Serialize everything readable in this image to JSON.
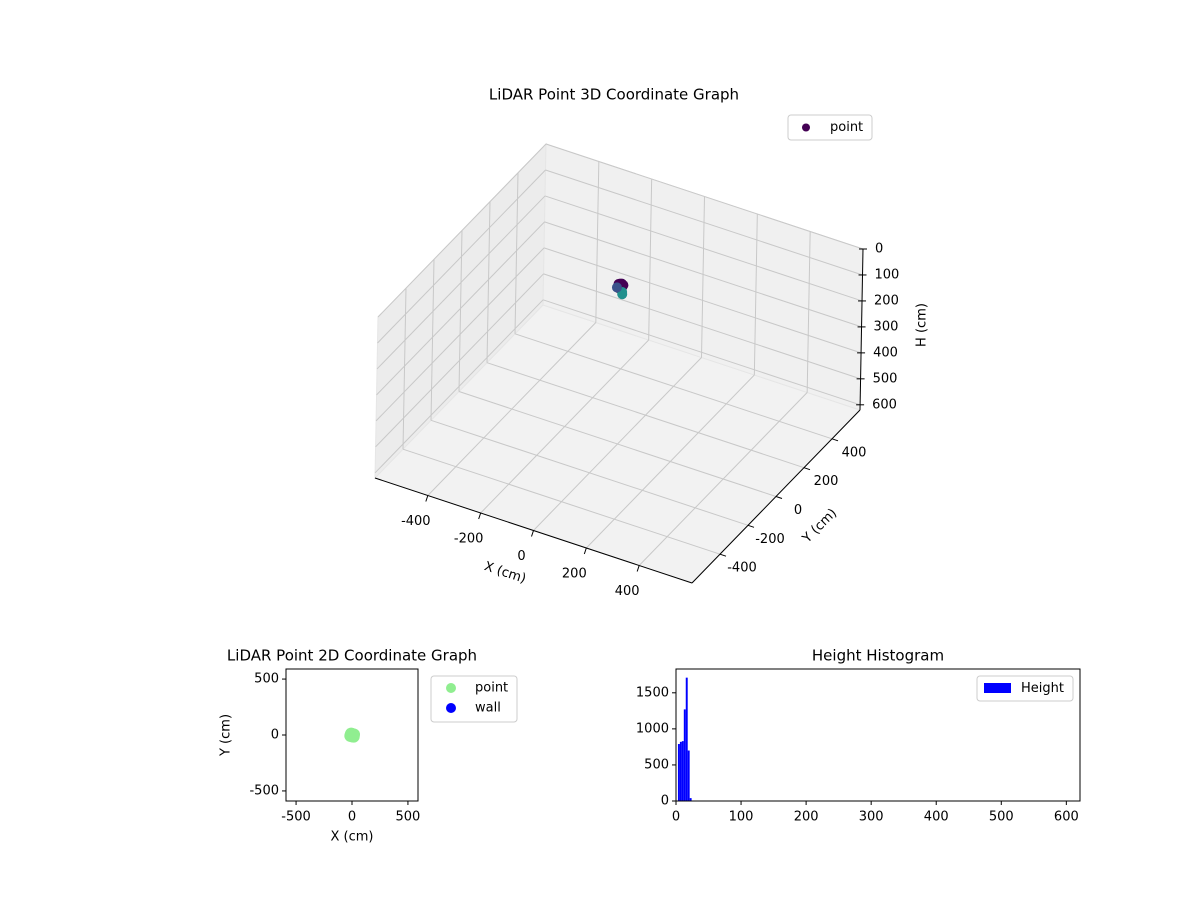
{
  "chart_data": [
    {
      "type": "scatter3d",
      "title": "LiDAR Point 3D Coordinate Graph",
      "x_label": "X (cm)",
      "y_label": "Y (cm)",
      "z_label": "H (cm)",
      "xlim": [
        -600,
        600
      ],
      "ylim": [
        -600,
        600
      ],
      "zlim": [
        0,
        620
      ],
      "z_inverted": true,
      "xticks": [
        -400,
        -200,
        0,
        200,
        400
      ],
      "yticks": [
        -400,
        -200,
        0,
        200,
        400
      ],
      "zticks": [
        0,
        100,
        200,
        300,
        400,
        500,
        600
      ],
      "legend": "upper right",
      "series": [
        {
          "name": "point",
          "color": "#440154",
          "x": [
            -10,
            -5,
            0,
            5,
            10,
            -8,
            2,
            8,
            -3,
            6,
            12,
            15,
            -12
          ],
          "y": [
            5,
            -5,
            10,
            0,
            -8,
            12,
            -12,
            6,
            2,
            -3,
            -10,
            -15,
            -2
          ],
          "h": [
            10,
            12,
            8,
            15,
            10,
            12,
            14,
            9,
            11,
            13,
            25,
            30,
            20
          ],
          "point_colors": [
            "#440154",
            "#440154",
            "#440154",
            "#440154",
            "#440154",
            "#440154",
            "#440154",
            "#440154",
            "#440154",
            "#440154",
            "#21908d",
            "#21908d",
            "#3b528b"
          ]
        }
      ]
    },
    {
      "type": "scatter",
      "title": "LiDAR Point 2D Coordinate Graph",
      "x_label": "X (cm)",
      "y_label": "Y (cm)",
      "xlim": [
        -590,
        590
      ],
      "ylim": [
        -590,
        590
      ],
      "xticks": [
        -500,
        0,
        500
      ],
      "yticks": [
        -500,
        0,
        500
      ],
      "legend": "outside right",
      "series": [
        {
          "name": "point",
          "color": "#90ee90",
          "x": [
            -10,
            -5,
            0,
            5,
            10,
            -8,
            2,
            8,
            -3,
            6,
            12,
            15,
            -12,
            18,
            -15
          ],
          "y": [
            5,
            -5,
            10,
            0,
            -8,
            12,
            -12,
            6,
            2,
            -3,
            -10,
            -15,
            -2,
            5,
            -8
          ]
        },
        {
          "name": "wall",
          "color": "#0000ff",
          "x": [],
          "y": []
        }
      ]
    },
    {
      "type": "histogram",
      "title": "Height Histogram",
      "xlim": [
        0,
        621
      ],
      "ylim": [
        0,
        1830
      ],
      "xticks": [
        0,
        100,
        200,
        300,
        400,
        500,
        600
      ],
      "yticks": [
        0,
        500,
        1000,
        1500
      ],
      "legend": "upper right",
      "series_name": "Height",
      "color": "#0000ff",
      "bins": [
        3,
        6,
        9,
        12,
        15,
        18,
        21,
        24
      ],
      "counts": [
        790,
        820,
        830,
        1270,
        1710,
        700,
        40
      ]
    }
  ]
}
